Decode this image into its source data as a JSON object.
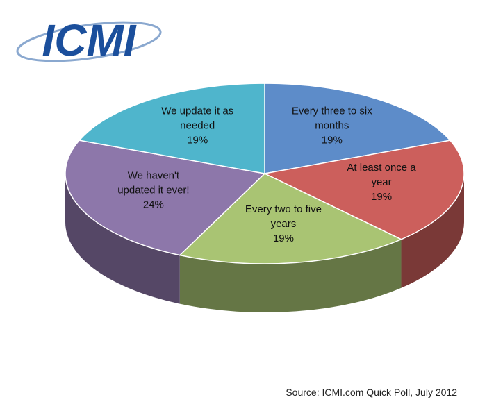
{
  "chart_data": {
    "type": "pie",
    "logo": "ICMI",
    "source": "Source: ICMI.com Quick Poll, July 2012",
    "categories": [
      "Every three to six months",
      "At least once a year",
      "Every two to five years",
      "We haven't updated it ever!",
      "We update it as needed"
    ],
    "values": [
      19,
      19,
      19,
      24,
      19
    ],
    "value_labels": [
      "19%",
      "19%",
      "19%",
      "24%",
      "19%"
    ],
    "colors": [
      "#5d8cc9",
      "#cc5f5c",
      "#a9c473",
      "#8d77aa",
      "#4fb5cc"
    ]
  }
}
